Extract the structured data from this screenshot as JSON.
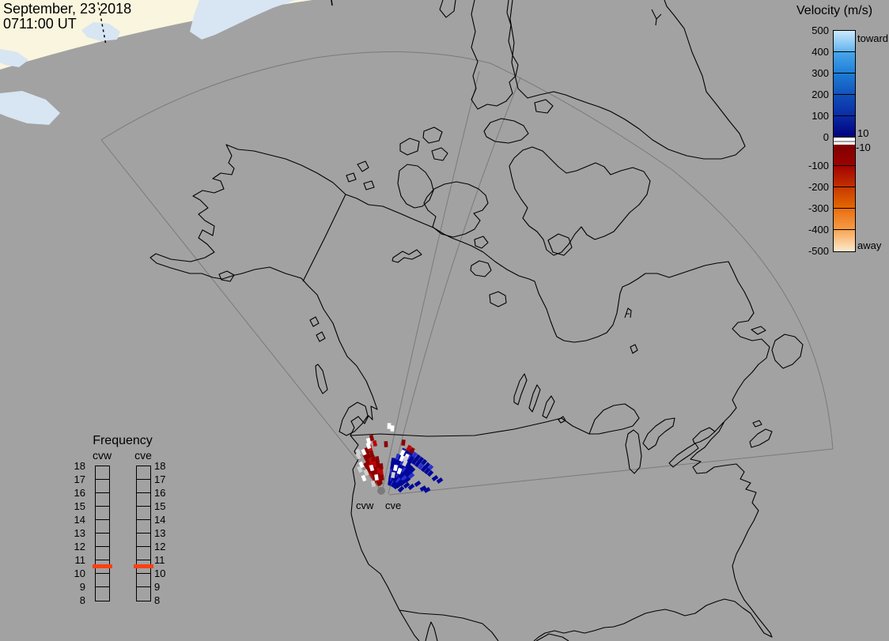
{
  "header": {
    "date_line1": "September, 23 2018",
    "date_line2": "0711:00 UT"
  },
  "velocity_legend": {
    "title": "Velocity (m/s)",
    "toward_label": "toward",
    "away_label": "away",
    "upper_threshold_label": "10",
    "lower_threshold_label": "-10",
    "tick_labels": [
      "500",
      "400",
      "300",
      "200",
      "100",
      "0",
      "-100",
      "-200",
      "-300",
      "-400",
      "-500"
    ],
    "cells": [
      {
        "from": "#cdeafc",
        "to": "#62b4ee"
      },
      {
        "from": "#49a6ea",
        "to": "#1f7fd8"
      },
      {
        "from": "#1e7cd4",
        "to": "#1254bc"
      },
      {
        "from": "#114eb8",
        "to": "#0a2da6"
      },
      {
        "from": "#092aa2",
        "to": "#01017e"
      },
      {
        "from": "#7f0000",
        "to": "#9c0200"
      },
      {
        "from": "#a20400",
        "to": "#c33000"
      },
      {
        "from": "#c73a00",
        "to": "#e56700"
      },
      {
        "from": "#e96e10",
        "to": "#f79b45"
      },
      {
        "from": "#f8a553",
        "to": "#fdeace"
      }
    ]
  },
  "frequency_legend": {
    "title": "Frequency",
    "columns": [
      {
        "label": "cvw"
      },
      {
        "label": "cve"
      }
    ],
    "tick_labels": [
      "18",
      "17",
      "16",
      "15",
      "14",
      "13",
      "12",
      "11",
      "10",
      "9",
      "8"
    ],
    "marker_value": "10.5",
    "marker_color": "#ff4010"
  },
  "map": {
    "radar_labels": [
      {
        "text": "cvw"
      },
      {
        "text": "cve"
      }
    ],
    "background_color": "#a2a2a2",
    "dayside_color": "#faf5de",
    "dayside_land_color": "#d8e5f2",
    "coast_color": "#000000",
    "fov_line_color": "#7a7a7a",
    "radar_dot_color": "#7b7b7b"
  },
  "radar_cells": {
    "palette": {
      "dr": "#8c0000",
      "r": "#bf0505",
      "db": "#000898",
      "b": "#2a2fd0",
      "w": "#ffffff",
      "g": "#d0d0d0"
    },
    "cells": [
      [
        474,
        607,
        -30,
        "dr"
      ],
      [
        470,
        601,
        -30,
        "r"
      ],
      [
        467,
        595,
        -30,
        "dr"
      ],
      [
        463,
        589,
        -30,
        "dr"
      ],
      [
        477,
        609,
        -25,
        "r"
      ],
      [
        474,
        603,
        -25,
        "dr"
      ],
      [
        471,
        597,
        -25,
        "dr"
      ],
      [
        468,
        590,
        -25,
        "r"
      ],
      [
        465,
        584,
        -25,
        "dr"
      ],
      [
        462,
        578,
        -25,
        "dr"
      ],
      [
        479,
        611,
        -20,
        "dr"
      ],
      [
        476,
        603,
        -20,
        "r"
      ],
      [
        473,
        597,
        -20,
        "dr"
      ],
      [
        471,
        590,
        -20,
        "dr"
      ],
      [
        469,
        584,
        -20,
        "r"
      ],
      [
        466,
        577,
        -20,
        "dr"
      ],
      [
        464,
        570,
        -20,
        "dr"
      ],
      [
        480,
        607,
        -15,
        "r"
      ],
      [
        478,
        601,
        -15,
        "dr"
      ],
      [
        476,
        594,
        -15,
        "dr"
      ],
      [
        474,
        587,
        -15,
        "r"
      ],
      [
        472,
        580,
        -15,
        "dr"
      ],
      [
        470,
        574,
        -15,
        "dr"
      ],
      [
        468,
        567,
        -15,
        "r"
      ],
      [
        481,
        609,
        -10,
        "dr"
      ],
      [
        480,
        602,
        -10,
        "dr"
      ],
      [
        479,
        595,
        -10,
        "r"
      ],
      [
        478,
        588,
        -10,
        "dr"
      ],
      [
        477,
        581,
        -10,
        "dr"
      ],
      [
        483,
        604,
        -5,
        "dr"
      ],
      [
        482,
        597,
        -5,
        "r"
      ],
      [
        482,
        590,
        -5,
        "dr"
      ],
      [
        460,
        605,
        -22,
        "w"
      ],
      [
        463,
        598,
        -22,
        "g"
      ],
      [
        457,
        588,
        -25,
        "w"
      ],
      [
        453,
        577,
        -28,
        "g"
      ],
      [
        470,
        592,
        -15,
        "w"
      ],
      [
        476,
        604,
        -8,
        "w"
      ],
      [
        472,
        612,
        -12,
        "g"
      ],
      [
        466,
        564,
        -18,
        "w"
      ],
      [
        460,
        572,
        -24,
        "w"
      ],
      [
        455,
        594,
        -26,
        "g"
      ],
      [
        470,
        554,
        -14,
        "dr"
      ],
      [
        474,
        561,
        -12,
        "r"
      ],
      [
        488,
        562,
        -3,
        "dr"
      ],
      [
        492,
        539,
        2,
        "w"
      ],
      [
        496,
        542,
        3,
        "w"
      ],
      [
        466,
        558,
        -15,
        "w"
      ],
      [
        453,
        572,
        -25,
        "g"
      ],
      [
        493,
        610,
        10,
        "db"
      ],
      [
        494,
        603,
        10,
        "db"
      ],
      [
        495,
        597,
        10,
        "b"
      ],
      [
        496,
        590,
        10,
        "db"
      ],
      [
        497,
        583,
        10,
        "db"
      ],
      [
        494,
        611,
        15,
        "db"
      ],
      [
        496,
        605,
        15,
        "b"
      ],
      [
        497,
        598,
        15,
        "db"
      ],
      [
        499,
        591,
        15,
        "db"
      ],
      [
        501,
        584,
        15,
        "db"
      ],
      [
        503,
        578,
        15,
        "b"
      ],
      [
        496,
        611,
        20,
        "db"
      ],
      [
        498,
        604,
        20,
        "db"
      ],
      [
        500,
        598,
        20,
        "db"
      ],
      [
        502,
        591,
        20,
        "b"
      ],
      [
        505,
        585,
        20,
        "db"
      ],
      [
        507,
        578,
        20,
        "db"
      ],
      [
        510,
        571,
        20,
        "db"
      ],
      [
        497,
        612,
        25,
        "b"
      ],
      [
        500,
        605,
        25,
        "db"
      ],
      [
        503,
        598,
        25,
        "db"
      ],
      [
        506,
        591,
        25,
        "db"
      ],
      [
        509,
        585,
        25,
        "b"
      ],
      [
        512,
        579,
        25,
        "db"
      ],
      [
        515,
        572,
        25,
        "db"
      ],
      [
        498,
        613,
        30,
        "db"
      ],
      [
        501,
        607,
        30,
        "db"
      ],
      [
        504,
        601,
        30,
        "b"
      ],
      [
        508,
        595,
        30,
        "db"
      ],
      [
        511,
        589,
        30,
        "db"
      ],
      [
        515,
        583,
        30,
        "db"
      ],
      [
        518,
        577,
        30,
        "b"
      ],
      [
        499,
        612,
        35,
        "db"
      ],
      [
        503,
        606,
        35,
        "db"
      ],
      [
        507,
        600,
        35,
        "db"
      ],
      [
        511,
        595,
        35,
        "b"
      ],
      [
        515,
        589,
        35,
        "db"
      ],
      [
        519,
        583,
        35,
        "db"
      ],
      [
        500,
        614,
        40,
        "db"
      ],
      [
        504,
        608,
        40,
        "b"
      ],
      [
        509,
        603,
        40,
        "db"
      ],
      [
        513,
        597,
        40,
        "db"
      ],
      [
        518,
        592,
        40,
        "db"
      ],
      [
        501,
        615,
        45,
        "db"
      ],
      [
        506,
        610,
        45,
        "db"
      ],
      [
        511,
        605,
        45,
        "b"
      ],
      [
        516,
        600,
        45,
        "db"
      ],
      [
        521,
        595,
        45,
        "db"
      ],
      [
        504,
        614,
        50,
        "db"
      ],
      [
        509,
        611,
        50,
        "db"
      ],
      [
        515,
        607,
        50,
        "db"
      ],
      [
        520,
        602,
        50,
        "b"
      ],
      [
        516,
        570,
        30,
        "db"
      ],
      [
        520,
        573,
        32,
        "db"
      ],
      [
        524,
        576,
        34,
        "b"
      ],
      [
        528,
        579,
        36,
        "db"
      ],
      [
        532,
        582,
        38,
        "db"
      ],
      [
        536,
        585,
        40,
        "db"
      ],
      [
        540,
        589,
        42,
        "db"
      ],
      [
        544,
        592,
        44,
        "b"
      ],
      [
        512,
        575,
        28,
        "db"
      ],
      [
        516,
        578,
        30,
        "b"
      ],
      [
        520,
        581,
        32,
        "db"
      ],
      [
        524,
        584,
        34,
        "db"
      ],
      [
        528,
        587,
        36,
        "db"
      ],
      [
        532,
        590,
        38,
        "b"
      ],
      [
        536,
        593,
        40,
        "db"
      ],
      [
        540,
        596,
        42,
        "db"
      ],
      [
        544,
        599,
        44,
        "db"
      ],
      [
        517,
        567,
        28,
        "r"
      ],
      [
        521,
        570,
        30,
        "dr"
      ],
      [
        510,
        560,
        8,
        "dr"
      ],
      [
        508,
        580,
        22,
        "w"
      ],
      [
        512,
        586,
        25,
        "g"
      ],
      [
        500,
        592,
        12,
        "w"
      ],
      [
        505,
        596,
        20,
        "w"
      ],
      [
        497,
        601,
        10,
        "g"
      ],
      [
        514,
        578,
        28,
        "w"
      ],
      [
        509,
        573,
        25,
        "w"
      ],
      [
        513,
        581,
        28,
        "g"
      ],
      [
        550,
        605,
        55,
        "db"
      ],
      [
        556,
        608,
        55,
        "db"
      ],
      [
        535,
        618,
        60,
        "db"
      ],
      [
        540,
        620,
        60,
        "db"
      ],
      [
        514,
        614,
        50,
        "db"
      ],
      [
        520,
        616,
        52,
        "db"
      ],
      [
        507,
        619,
        45,
        "db"
      ],
      [
        528,
        612,
        55,
        "db"
      ]
    ]
  }
}
